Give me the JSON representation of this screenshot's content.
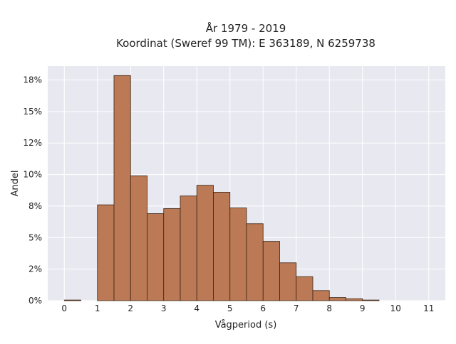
{
  "chart_data": {
    "type": "bar",
    "title": "År 1979 - 2019",
    "subtitle": "Koordinat (Sweref 99 TM): E 363189, N 6259738",
    "xlabel": "Vågperiod (s)",
    "ylabel": "Andel",
    "bin_width": 0.5,
    "xlim": [
      -0.5,
      11.5
    ],
    "ylim": [
      0,
      18.6
    ],
    "x_ticks": [
      0,
      1,
      2,
      3,
      4,
      5,
      6,
      7,
      8,
      9,
      10,
      11
    ],
    "x_tick_labels": [
      "0",
      "1",
      "2",
      "3",
      "4",
      "5",
      "6",
      "7",
      "8",
      "9",
      "10",
      "11"
    ],
    "y_ticks": [
      0,
      2.5,
      5,
      7.5,
      10,
      12.5,
      15,
      17.5
    ],
    "y_tick_labels": [
      "0%",
      "2%",
      "5%",
      "8%",
      "10%",
      "12%",
      "15%",
      "18%"
    ],
    "grid": true,
    "bins": [
      {
        "start": 0.0,
        "value": 0.05
      },
      {
        "start": 1.0,
        "value": 7.6
      },
      {
        "start": 1.5,
        "value": 17.85
      },
      {
        "start": 2.0,
        "value": 9.9
      },
      {
        "start": 2.5,
        "value": 6.9
      },
      {
        "start": 3.0,
        "value": 7.3
      },
      {
        "start": 3.5,
        "value": 8.3
      },
      {
        "start": 4.0,
        "value": 9.15
      },
      {
        "start": 4.5,
        "value": 8.6
      },
      {
        "start": 5.0,
        "value": 7.35
      },
      {
        "start": 5.5,
        "value": 6.1
      },
      {
        "start": 6.0,
        "value": 4.7
      },
      {
        "start": 6.5,
        "value": 3.0
      },
      {
        "start": 7.0,
        "value": 1.9
      },
      {
        "start": 7.5,
        "value": 0.8
      },
      {
        "start": 8.0,
        "value": 0.25
      },
      {
        "start": 8.5,
        "value": 0.15
      },
      {
        "start": 9.0,
        "value": 0.05
      }
    ],
    "colors": {
      "bar_fill": "#bb7a55",
      "bar_stroke": "#3b2314",
      "plot_background": "#e8e8f0",
      "grid": "#ffffff"
    }
  }
}
